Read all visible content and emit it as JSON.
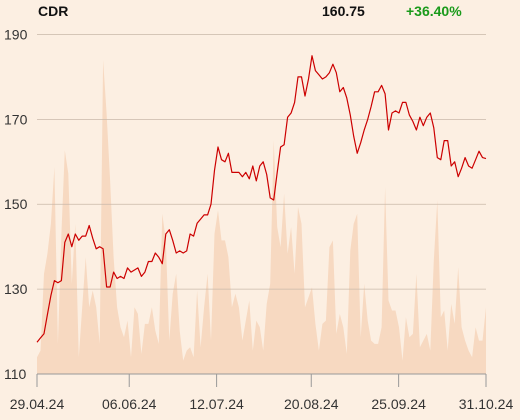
{
  "header": {
    "ticker": "CDR",
    "price": "160.75",
    "change": "+36.40%"
  },
  "colors": {
    "background": "#fcefe2",
    "price_line": "#cc0000",
    "volume_area": "#f7d9c1",
    "grid": "#c9b9a9",
    "change_positive": "#1a9a1a"
  },
  "chart_data": {
    "type": "line",
    "title": "",
    "xlabel": "",
    "ylabel": "",
    "ylim": [
      110,
      192
    ],
    "yticks": [
      110,
      130,
      150,
      170,
      190
    ],
    "ytick_labels": [
      "110",
      "130",
      "150",
      "170",
      "190"
    ],
    "xlim": [
      "2024-04-29",
      "2024-10-31"
    ],
    "xticks": [
      "2024-04-29",
      "2024-06-06",
      "2024-07-12",
      "2024-08-20",
      "2024-09-25",
      "2024-10-31"
    ],
    "xtick_labels": [
      "29.04.24",
      "06.06.24",
      "12.07.24",
      "20.08.24",
      "25.09.24",
      "31.10.24"
    ],
    "grid": true,
    "series": [
      {
        "kind": "line",
        "values": [
          117.5,
          118.5,
          119.5,
          124,
          128.5,
          132,
          131.5,
          132,
          141,
          143,
          140,
          143,
          141.5,
          142.5,
          142.5,
          145,
          142,
          139.5,
          140,
          139.5,
          130.5,
          130.5,
          134,
          132.5,
          133,
          132.5,
          135,
          134,
          134.5,
          135,
          133,
          134,
          136.5,
          136.5,
          138.5,
          137.5,
          136,
          143,
          144,
          141.5,
          138.5,
          139,
          138.5,
          139,
          143,
          142.5,
          145.5,
          146.5,
          147.5,
          147.5,
          150,
          158,
          163.5,
          160.5,
          160,
          162,
          157.5,
          157.5,
          157.5,
          156.5,
          157.5,
          156,
          159,
          155.5,
          159,
          160,
          157,
          151.5,
          151,
          157.5,
          163.5,
          164,
          170.5,
          171.5,
          174,
          180,
          180,
          175.5,
          179.5,
          185,
          181.5,
          180.5,
          179.5,
          180,
          181,
          183,
          181,
          176.5,
          177.5,
          175,
          171,
          166,
          162,
          164.5,
          167.5,
          170,
          173,
          176.5,
          176.5,
          178,
          176,
          167.5,
          171.5,
          172,
          171.5,
          174,
          174,
          171,
          169.5,
          167.5,
          170.5,
          168.5,
          170.5,
          171.5,
          168,
          161,
          160.5,
          165,
          165,
          159,
          160,
          156.5,
          158.5,
          161,
          159,
          158.5,
          160.5,
          162.5,
          161,
          160.75
        ]
      },
      {
        "kind": "volume",
        "values": [
          0.05,
          0.07,
          0.3,
          0.36,
          0.45,
          0.62,
          0.09,
          0.42,
          0.67,
          0.6,
          0.27,
          0.45,
          0.05,
          0.2,
          0.35,
          0.2,
          0.25,
          0.2,
          0.09,
          0.94,
          0.78,
          0.58,
          0.35,
          0.2,
          0.14,
          0.11,
          0.16,
          0.05,
          0.2,
          0.18,
          0.06,
          0.15,
          0.15,
          0.2,
          0.13,
          0.09,
          0.48,
          0.4,
          0.1,
          0.24,
          0.3,
          0.13,
          0.04,
          0.07,
          0.08,
          0.05,
          0.25,
          0.08,
          0.2,
          0.3,
          0.1,
          0.42,
          0.49,
          0.4,
          0.4,
          0.35,
          0.2,
          0.24,
          0.2,
          0.1,
          0.16,
          0.22,
          0.07,
          0.16,
          0.14,
          0.07,
          0.21,
          0.27,
          0.7,
          0.44,
          0.38,
          0.54,
          0.36,
          0.44,
          0.3,
          0.5,
          0.45,
          0.2,
          0.23,
          0.26,
          0.15,
          0.07,
          0.15,
          0.16,
          0.38,
          0.4,
          0.12,
          0.18,
          0.14,
          0.06,
          0.37,
          0.45,
          0.48,
          0.11,
          0.27,
          0.16,
          0.1,
          0.09,
          0.09,
          0.14,
          0.56,
          0.22,
          0.19,
          0.19,
          0.14,
          0.04,
          0.17,
          0.11,
          0.12,
          0.3,
          0.08,
          0.1,
          0.12,
          0.07,
          0.34,
          0.52,
          0.17,
          0.19,
          0.07,
          0.21,
          0.15,
          0.32,
          0.14,
          0.1,
          0.07,
          0.05,
          0.14,
          0.1,
          0.1,
          0.2
        ]
      }
    ]
  }
}
